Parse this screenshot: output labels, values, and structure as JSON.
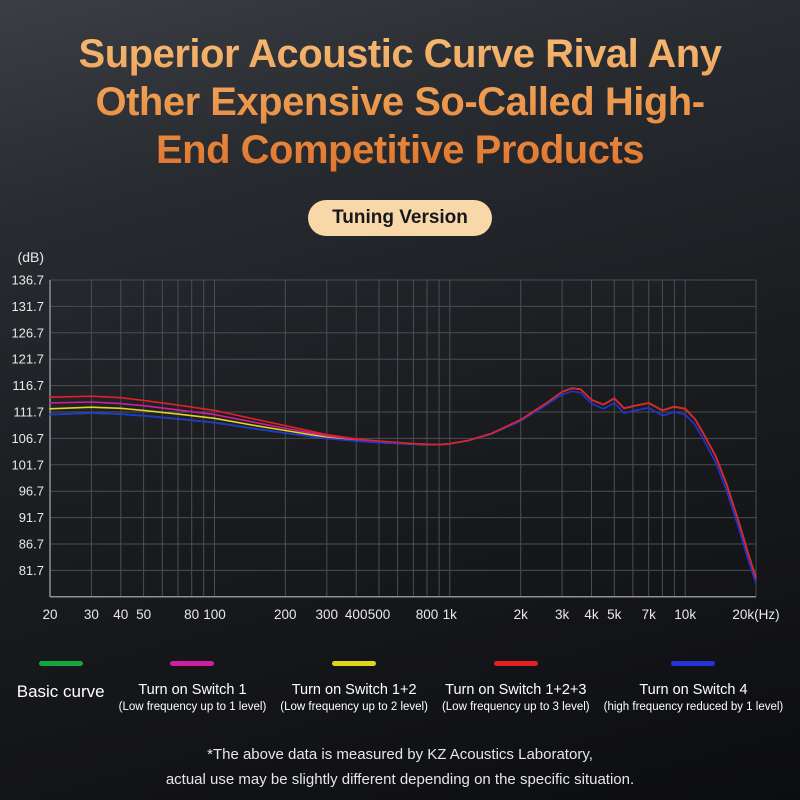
{
  "title": {
    "lines": [
      "Superior Acoustic Curve Rival Any",
      "Other Expensive So-Called High-",
      "End Competitive Products"
    ]
  },
  "badge": "Tuning Version",
  "chart_data": {
    "type": "line",
    "title": "",
    "xlabel": "",
    "ylabel": "(dB)",
    "grid": true,
    "x_scale": "log",
    "xlim": [
      20,
      20000
    ],
    "ylim": [
      76.7,
      136.7
    ],
    "y_ticks": [
      136.7,
      131.7,
      126.7,
      121.7,
      116.7,
      111.7,
      106.7,
      101.7,
      96.7,
      91.7,
      86.7,
      81.7
    ],
    "x_ticks": [
      {
        "f": 20,
        "label": "20"
      },
      {
        "f": 30,
        "label": "30"
      },
      {
        "f": 40,
        "label": "40"
      },
      {
        "f": 50,
        "label": "50"
      },
      {
        "f": 80,
        "label": "80"
      },
      {
        "f": 100,
        "label": "100"
      },
      {
        "f": 200,
        "label": "200"
      },
      {
        "f": 300,
        "label": "300"
      },
      {
        "f": 400,
        "label": "400"
      },
      {
        "f": 500,
        "label": "500"
      },
      {
        "f": 800,
        "label": "800"
      },
      {
        "f": 1000,
        "label": "1k"
      },
      {
        "f": 2000,
        "label": "2k"
      },
      {
        "f": 3000,
        "label": "3k"
      },
      {
        "f": 4000,
        "label": "4k"
      },
      {
        "f": 5000,
        "label": "5k"
      },
      {
        "f": 7000,
        "label": "7k"
      },
      {
        "f": 10000,
        "label": "10k"
      },
      {
        "f": 20000,
        "label": "20k(Hz)"
      }
    ],
    "x": [
      20,
      30,
      40,
      50,
      70,
      100,
      150,
      200,
      300,
      400,
      500,
      700,
      900,
      1000,
      1200,
      1500,
      2000,
      2500,
      3000,
      3300,
      3600,
      4000,
      4500,
      5000,
      5500,
      6000,
      7000,
      8000,
      9000,
      10000,
      11000,
      12000,
      13500,
      15000,
      17000,
      18500,
      20000
    ],
    "series": [
      {
        "name": "Basic curve",
        "color": "#12a83c",
        "y": [
          111.2,
          111.5,
          111.3,
          111.0,
          110.4,
          109.7,
          108.5,
          107.7,
          106.7,
          106.2,
          105.9,
          105.6,
          105.5,
          105.7,
          106.3,
          107.6,
          110.2,
          113.0,
          115.5,
          116.2,
          116.0,
          114.0,
          113.1,
          114.3,
          112.4,
          112.8,
          113.4,
          112.0,
          112.7,
          112.3,
          110.4,
          107.5,
          103.3,
          98.0,
          90.5,
          85.0,
          80.3
        ]
      },
      {
        "name": "Turn on Switch 1+2",
        "color": "#e0d41e",
        "y": [
          112.3,
          112.6,
          112.4,
          112.0,
          111.3,
          110.5,
          109.1,
          108.2,
          106.9,
          106.3,
          106.0,
          105.6,
          105.5,
          105.7,
          106.3,
          107.6,
          110.2,
          113.0,
          115.5,
          116.2,
          116.0,
          114.0,
          113.1,
          114.3,
          112.4,
          112.8,
          113.4,
          112.0,
          112.7,
          112.3,
          110.4,
          107.5,
          103.3,
          98.0,
          90.5,
          85.0,
          80.3
        ]
      },
      {
        "name": "Turn on Switch 1",
        "color": "#cf1f9e",
        "y": [
          113.4,
          113.6,
          113.3,
          112.9,
          112.1,
          111.2,
          109.7,
          108.6,
          107.2,
          106.5,
          106.1,
          105.7,
          105.5,
          105.7,
          106.3,
          107.6,
          110.2,
          113.0,
          115.5,
          116.2,
          116.0,
          114.0,
          113.1,
          114.3,
          112.4,
          112.8,
          113.4,
          112.0,
          112.7,
          112.3,
          110.4,
          107.5,
          103.3,
          98.0,
          90.5,
          85.0,
          80.3
        ]
      },
      {
        "name": "Turn on Switch 4",
        "color": "#2135d6",
        "y": [
          111.2,
          111.5,
          111.3,
          111.0,
          110.4,
          109.7,
          108.5,
          107.7,
          106.7,
          106.2,
          105.9,
          105.6,
          105.5,
          105.7,
          106.3,
          107.5,
          110.0,
          112.7,
          115.0,
          115.6,
          115.4,
          113.3,
          112.3,
          113.4,
          111.5,
          111.9,
          112.5,
          111.0,
          111.7,
          111.2,
          109.3,
          106.4,
          102.1,
          96.8,
          89.3,
          83.8,
          79.2
        ]
      },
      {
        "name": "Turn on Switch 1+2+3",
        "color": "#e02222",
        "y": [
          114.5,
          114.7,
          114.4,
          113.9,
          113.0,
          112.0,
          110.3,
          109.1,
          107.4,
          106.6,
          106.2,
          105.7,
          105.5,
          105.7,
          106.3,
          107.6,
          110.2,
          113.0,
          115.5,
          116.2,
          116.0,
          114.0,
          113.1,
          114.3,
          112.4,
          112.8,
          113.4,
          112.0,
          112.7,
          112.3,
          110.4,
          107.5,
          103.3,
          98.0,
          90.5,
          85.0,
          80.3
        ]
      }
    ],
    "legend_position": "bottom"
  },
  "legend": [
    {
      "label": "Basic curve",
      "sub": "",
      "color": "#12a83c"
    },
    {
      "label": "Turn on Switch 1",
      "sub": "(Low frequency up to 1 level)",
      "color": "#cf1f9e"
    },
    {
      "label": "Turn on Switch 1+2",
      "sub": "(Low frequency up to 2 level)",
      "color": "#e0d41e"
    },
    {
      "label": "Turn on Switch 1+2+3",
      "sub": "(Low frequency up to 3 level)",
      "color": "#e02222"
    },
    {
      "label": "Turn on Switch 4",
      "sub": "(high frequency reduced by 1 level)",
      "color": "#2135d6"
    }
  ],
  "footer": {
    "lines": [
      "*The above data is measured by KZ Acoustics Laboratory,",
      "actual use may be slightly different depending on the specific situation."
    ]
  },
  "colors": {
    "accent_title_top": "#f6bd77",
    "accent_title_bottom": "#e1732b",
    "badge_bg": "#f8d8a9",
    "grid": "#4a4e53",
    "axis": "#8c9196",
    "tick_text": "#e8e8e8"
  }
}
